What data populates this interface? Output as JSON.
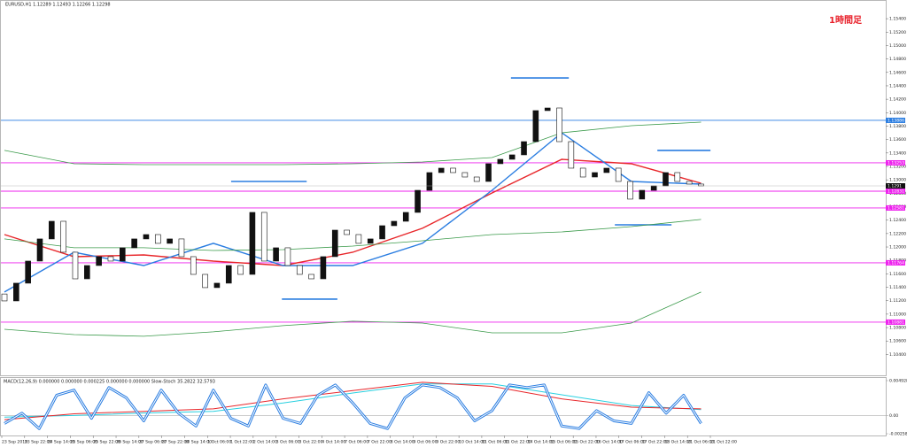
{
  "chart_data": {
    "type": "candlestick",
    "title": "EURUSD,H1 1.12289 1.12493 1.12266 1.12298",
    "annotation": "1時間足",
    "sub_title": "MACD(12,26,9) 0.000000 0.000000 0.000225 0.000000 0.000000 Slow-Stoch 35.2822 32.5793",
    "ylim": [
      1.103,
      1.1552
    ],
    "yticks": [
      {
        "value": 1.104,
        "label": "1.10400"
      },
      {
        "value": 1.106,
        "label": "1.10600"
      },
      {
        "value": 1.108,
        "label": "1.10800"
      },
      {
        "value": 1.11,
        "label": "1.11000"
      },
      {
        "value": 1.112,
        "label": "1.11200"
      },
      {
        "value": 1.114,
        "label": "1.11400"
      },
      {
        "value": 1.116,
        "label": "1.11600"
      },
      {
        "value": 1.118,
        "label": "1.11800"
      },
      {
        "value": 1.12,
        "label": "1.12000"
      },
      {
        "value": 1.122,
        "label": "1.12200"
      },
      {
        "value": 1.124,
        "label": "1.12400"
      },
      {
        "value": 1.126,
        "label": "1.12600"
      },
      {
        "value": 1.128,
        "label": "1.12800"
      },
      {
        "value": 1.13,
        "label": "1.13000"
      },
      {
        "value": 1.132,
        "label": "1.13200"
      },
      {
        "value": 1.134,
        "label": "1.13400"
      },
      {
        "value": 1.136,
        "label": "1.13600"
      },
      {
        "value": 1.138,
        "label": "1.13800"
      },
      {
        "value": 1.14,
        "label": "1.14000"
      },
      {
        "value": 1.142,
        "label": "1.14200"
      },
      {
        "value": 1.144,
        "label": "1.14400"
      },
      {
        "value": 1.146,
        "label": "1.14600"
      },
      {
        "value": 1.148,
        "label": "1.14800"
      },
      {
        "value": 1.15,
        "label": "1.15000"
      },
      {
        "value": 1.152,
        "label": "1.15200"
      },
      {
        "value": 1.154,
        "label": "1.15400"
      }
    ],
    "time_labels": [
      "23 Sep 2019",
      "23 Sep 22:00",
      "24 Sep 14:00",
      "25 Sep 06:00",
      "25 Sep 22:00",
      "26 Sep 14:00",
      "27 Sep 06:00",
      "27 Sep 22:00",
      "30 Sep 14:00",
      "1 Oct 06:00",
      "1 Oct 22:00",
      "2 Oct 14:00",
      "3 Oct 06:00",
      "3 Oct 22:00",
      "4 Oct 14:00",
      "7 Oct 06:00",
      "7 Oct 22:00",
      "8 Oct 14:00",
      "9 Oct 06:00",
      "9 Oct 22:00",
      "10 Oct 14:00",
      "11 Oct 06:00",
      "11 Oct 22:00",
      "14 Oct 14:00",
      "15 Oct 06:00",
      "15 Oct 22:00",
      "16 Oct 14:00",
      "17 Oct 06:00",
      "17 Oct 22:00",
      "18 Oct 14:00",
      "21 Oct 06:00",
      "21 Oct 22:00"
    ],
    "up_color": "#111111",
    "down_color": "#ffffff",
    "open": [
      1.113,
      1.11197,
      1.11461,
      1.1179,
      1.1212,
      1.12383,
      1.11922,
      1.11526,
      1.11724,
      1.11856,
      1.1179,
      1.11988,
      1.1212,
      1.12185,
      1.12054,
      1.1212,
      1.11856,
      1.11592,
      1.11395,
      1.11461,
      1.11724,
      1.11592,
      1.12515,
      1.1179,
      1.11988,
      1.11724,
      1.11592,
      1.11526,
      1.11856,
      1.12251,
      1.12185,
      1.12054,
      1.1212,
      1.12317,
      1.12383,
      1.12515,
      1.12844,
      1.13108,
      1.13174,
      1.13108,
      1.13042,
      1.12976,
      1.1324,
      1.13306,
      1.13372,
      1.13569,
      1.14031,
      1.1407,
      1.13569,
      1.13174,
      1.13042,
      1.13108,
      1.13174,
      1.12976,
      1.12713,
      1.12844,
      1.1291,
      1.13108,
      1.12976,
      1.12937
    ],
    "close": [
      1.11197,
      1.11461,
      1.1179,
      1.1212,
      1.12383,
      1.11922,
      1.11526,
      1.11724,
      1.11856,
      1.1179,
      1.11988,
      1.1212,
      1.12185,
      1.12054,
      1.1212,
      1.11856,
      1.11592,
      1.11395,
      1.11461,
      1.11724,
      1.11592,
      1.12515,
      1.1179,
      1.11988,
      1.11724,
      1.11592,
      1.11526,
      1.11856,
      1.12251,
      1.12185,
      1.12054,
      1.1212,
      1.12317,
      1.12383,
      1.12515,
      1.12844,
      1.13108,
      1.13174,
      1.13108,
      1.13042,
      1.12976,
      1.1324,
      1.13306,
      1.13372,
      1.13569,
      1.14031,
      1.1407,
      1.13569,
      1.13174,
      1.13042,
      1.13108,
      1.13174,
      1.12976,
      1.12713,
      1.12844,
      1.1291,
      1.13108,
      1.12976,
      1.12937,
      1.1291
    ],
    "series": [
      {
        "color": "#e8262a",
        "values": [
          1.12185,
          1.11856,
          1.11882,
          1.1179,
          1.11724,
          1.11922,
          1.12278,
          1.12805,
          1.13306,
          1.1324,
          1.1295
        ]
      },
      {
        "color": "#2a7de1",
        "values": [
          1.11329,
          1.11922,
          1.11724,
          1.12054,
          1.11724,
          1.11724,
          1.12054,
          1.12844,
          1.13701,
          1.12976,
          1.12937
        ]
      },
      {
        "color": "#3a9a4a",
        "values": [
          1.13438,
          1.1324,
          1.13227,
          1.13227,
          1.13227,
          1.1324,
          1.13266,
          1.13332,
          1.13701,
          1.13807,
          1.13859
        ]
      },
      {
        "color": "#3a9a4a",
        "values": [
          1.1212,
          1.11988,
          1.11988,
          1.11948,
          1.11961,
          1.12014,
          1.12093,
          1.12185,
          1.12225,
          1.12304,
          1.1241
        ]
      },
      {
        "color": "#3a9a4a",
        "values": [
          1.10775,
          1.10696,
          1.1067,
          1.10736,
          1.10828,
          1.10894,
          1.10867,
          1.10722,
          1.10722,
          1.10867,
          1.11329
        ]
      }
    ],
    "levels": [
      {
        "price": 1.13886,
        "color": "#2a7de1"
      },
      {
        "price": 1.13253,
        "color": "#ee22ee"
      },
      {
        "price": 1.12831,
        "color": "#ee22ee"
      },
      {
        "price": 1.12581,
        "color": "#ee22ee"
      },
      {
        "price": 1.11764,
        "color": "#ee22ee"
      },
      {
        "price": 1.10881,
        "color": "#ee22ee"
      }
    ],
    "segments": [
      {
        "price": 1.14518,
        "from": 42.9,
        "to": 47.8
      },
      {
        "price": 1.12976,
        "from": 19.2,
        "to": 25.6
      },
      {
        "price": 1.11223,
        "from": 23.5,
        "to": 28.2
      },
      {
        "price": 1.13438,
        "from": 55.3,
        "to": 59.8
      },
      {
        "price": 1.1233,
        "from": 51.7,
        "to": 56.5
      }
    ],
    "segment_color": "#2a7de1",
    "sub_ylim": [
      -0.00258,
      0.004928
    ],
    "sub_yticks": [
      {
        "value": 0.004928,
        "label": "0.004928"
      },
      {
        "value": 0,
        "label": "0.00"
      },
      {
        "value": -0.00258,
        "label": "-0.002580"
      }
    ],
    "macd": {
      "color": "#e8262a",
      "values": [
        -0.00059,
        0.00023,
        0.00059,
        0.00094,
        0.00235,
        0.00352,
        0.00469,
        0.00411,
        0.00235,
        0.00117,
        0.00094
      ]
    },
    "signal": {
      "color": "#28d0e0",
      "values": [
        -0.00023,
        0.0,
        0.00035,
        0.00059,
        0.00176,
        0.00317,
        0.00446,
        0.00446,
        0.00293,
        0.00141,
        0.00082
      ]
    },
    "stoch_lim": [
      0,
      100
    ],
    "stoch": {
      "color": "#2a7de1",
      "values": [
        20,
        40,
        10,
        75,
        85,
        30,
        90,
        70,
        25,
        85,
        40,
        15,
        85,
        30,
        15,
        95,
        30,
        20,
        75,
        95,
        60,
        20,
        10,
        70,
        95,
        90,
        70,
        25,
        45,
        95,
        90,
        95,
        15,
        10,
        45,
        25,
        20,
        80,
        40,
        75,
        20
      ]
    }
  }
}
